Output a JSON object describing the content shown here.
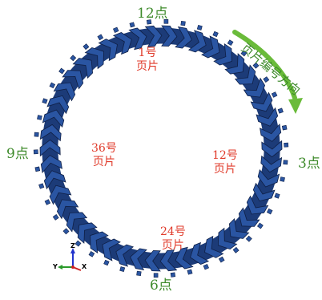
{
  "clock_labels": {
    "twelve": "12点",
    "three": "3点",
    "six": "6点",
    "nine": "9点"
  },
  "blade_labels": [
    {
      "num": "1号",
      "word": "页片"
    },
    {
      "num": "12号",
      "word": "页片"
    },
    {
      "num": "24号",
      "word": "页片"
    },
    {
      "num": "36号",
      "word": "页片"
    }
  ],
  "direction_label": "页片编号方向",
  "axis_triad": {
    "z": "Z",
    "y": "Y",
    "x": "X"
  },
  "colors": {
    "blade_fill": "#2a55a2",
    "blade_edge": "#0f1f45",
    "clock_text": "#3d8a2a",
    "blade_text": "#e03a2a",
    "arrow": "#6abb3a"
  },
  "icons": {
    "ring": "blade-ring-icon",
    "arrow": "curved-direction-arrow-icon",
    "triad": "coordinate-triad-icon"
  }
}
